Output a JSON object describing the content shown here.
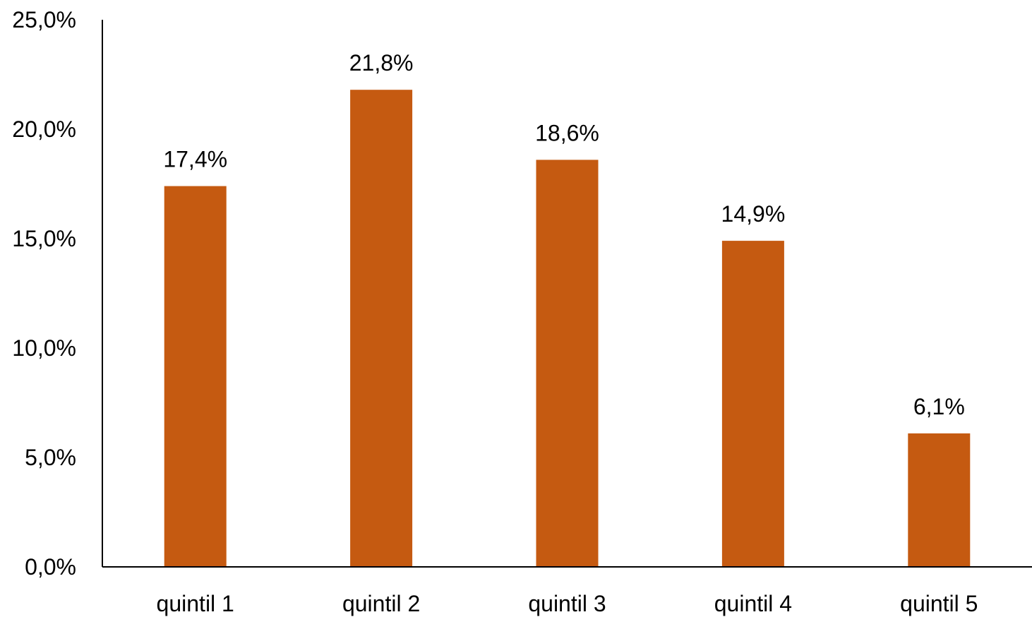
{
  "chart_data": {
    "type": "bar",
    "categories": [
      "quintil 1",
      "quintil 2",
      "quintil 3",
      "quintil 4",
      "quintil 5"
    ],
    "values": [
      17.4,
      21.8,
      18.6,
      14.9,
      6.1
    ],
    "data_labels": [
      "17,4%",
      "21,8%",
      "18,6%",
      "14,9%",
      "6,1%"
    ],
    "ylim": [
      0,
      25
    ],
    "y_ticks": [
      0,
      5,
      10,
      15,
      20,
      25
    ],
    "y_tick_labels": [
      "0,0%",
      "5,0%",
      "10,0%",
      "15,0%",
      "20,0%",
      "25,0%"
    ],
    "grid": false,
    "legend": "none",
    "bar_color": "#C55A11"
  }
}
